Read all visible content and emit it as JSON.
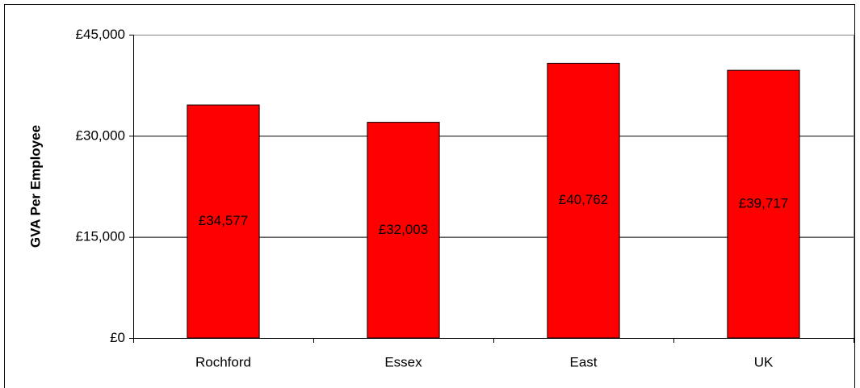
{
  "chart_data": {
    "type": "bar",
    "y_label": "GVA Per Employee",
    "categories": [
      "Rochford",
      "Essex",
      "East",
      "UK"
    ],
    "values": [
      34577,
      32003,
      40762,
      39717
    ],
    "value_labels": [
      "£34,577",
      "£32,003",
      "£40,762",
      "£39,717"
    ],
    "color": "#ff0000",
    "ylim": [
      0,
      45000
    ],
    "yticks": [
      {
        "value": 0,
        "label": "£0"
      },
      {
        "value": 15000,
        "label": "£15,000"
      },
      {
        "value": 30000,
        "label": "£30,000"
      },
      {
        "value": 45000,
        "label": "£45,000"
      }
    ],
    "grid": true
  }
}
